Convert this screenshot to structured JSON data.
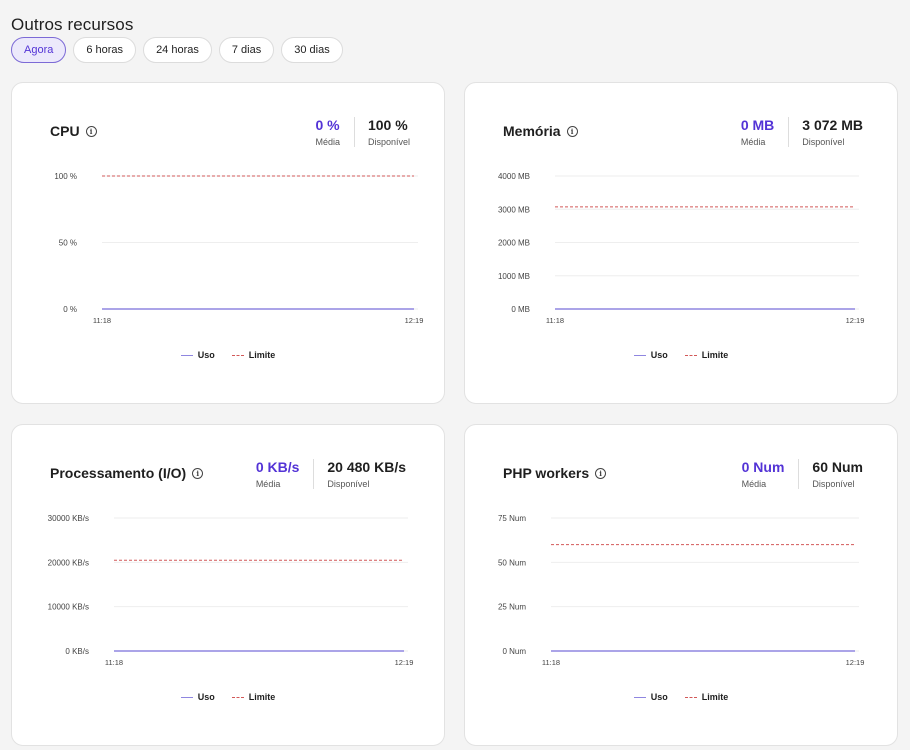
{
  "page": {
    "title": "Outros recursos",
    "tabs": [
      {
        "label": "Agora",
        "active": true
      },
      {
        "label": "6 horas",
        "active": false
      },
      {
        "label": "24 horas",
        "active": false
      },
      {
        "label": "7 dias",
        "active": false
      },
      {
        "label": "30 dias",
        "active": false
      }
    ]
  },
  "colors": {
    "accent": "#5333d6",
    "usage_line": "#8f86e0",
    "limit_line": "#d25858",
    "grid": "#eeeeee"
  },
  "cards": [
    {
      "title": "CPU",
      "info_icon": "info-icon",
      "avg_value": "0 %",
      "avg_label": "Média",
      "avail_value": "100 %",
      "avail_label": "Disponível",
      "legend": {
        "usage": "Uso",
        "limit": "Limite"
      }
    },
    {
      "title": "Memória",
      "info_icon": "info-icon",
      "avg_value": "0 MB",
      "avg_label": "Média",
      "avail_value": "3 072 MB",
      "avail_label": "Disponível",
      "legend": {
        "usage": "Uso",
        "limit": "Limite"
      }
    },
    {
      "title": "Processamento (I/O)",
      "info_icon": "info-icon",
      "avg_value": "0 KB/s",
      "avg_label": "Média",
      "avail_value": "20 480 KB/s",
      "avail_label": "Disponível",
      "legend": {
        "usage": "Uso",
        "limit": "Limite"
      }
    },
    {
      "title": "PHP workers",
      "info_icon": "info-icon",
      "avg_value": "0 Num",
      "avg_label": "Média",
      "avail_value": "60 Num",
      "avail_label": "Disponível",
      "legend": {
        "usage": "Uso",
        "limit": "Limite"
      }
    }
  ],
  "chart_data": [
    {
      "type": "line",
      "x": [
        "11:18",
        "12:19"
      ],
      "ylim": [
        0,
        100
      ],
      "yticks": [
        0,
        50,
        100
      ],
      "ytick_labels": [
        "0 %",
        "50 %",
        "100 %"
      ],
      "series": [
        {
          "name": "Uso",
          "values": [
            0,
            0
          ],
          "style": "solid"
        },
        {
          "name": "Limite",
          "values": [
            100,
            100
          ],
          "style": "dashed"
        }
      ]
    },
    {
      "type": "line",
      "x": [
        "11:18",
        "12:19"
      ],
      "ylim": [
        0,
        4000
      ],
      "yticks": [
        0,
        1000,
        2000,
        3000,
        4000
      ],
      "ytick_labels": [
        "0 MB",
        "1000 MB",
        "2000 MB",
        "3000 MB",
        "4000 MB"
      ],
      "series": [
        {
          "name": "Uso",
          "values": [
            0,
            0
          ],
          "style": "solid"
        },
        {
          "name": "Limite",
          "values": [
            3072,
            3072
          ],
          "style": "dashed"
        }
      ]
    },
    {
      "type": "line",
      "x": [
        "11:18",
        "12:19"
      ],
      "ylim": [
        0,
        30000
      ],
      "yticks": [
        0,
        10000,
        20000,
        30000
      ],
      "ytick_labels": [
        "0 KB/s",
        "10000 KB/s",
        "20000 KB/s",
        "30000 KB/s"
      ],
      "series": [
        {
          "name": "Uso",
          "values": [
            0,
            0
          ],
          "style": "solid"
        },
        {
          "name": "Limite",
          "values": [
            20480,
            20480
          ],
          "style": "dashed"
        }
      ]
    },
    {
      "type": "line",
      "x": [
        "11:18",
        "12:19"
      ],
      "ylim": [
        0,
        75
      ],
      "yticks": [
        0,
        25,
        50,
        75
      ],
      "ytick_labels": [
        "0 Num",
        "25 Num",
        "50 Num",
        "75 Num"
      ],
      "series": [
        {
          "name": "Uso",
          "values": [
            0,
            0
          ],
          "style": "solid"
        },
        {
          "name": "Limite",
          "values": [
            60,
            60
          ],
          "style": "dashed"
        }
      ]
    }
  ]
}
